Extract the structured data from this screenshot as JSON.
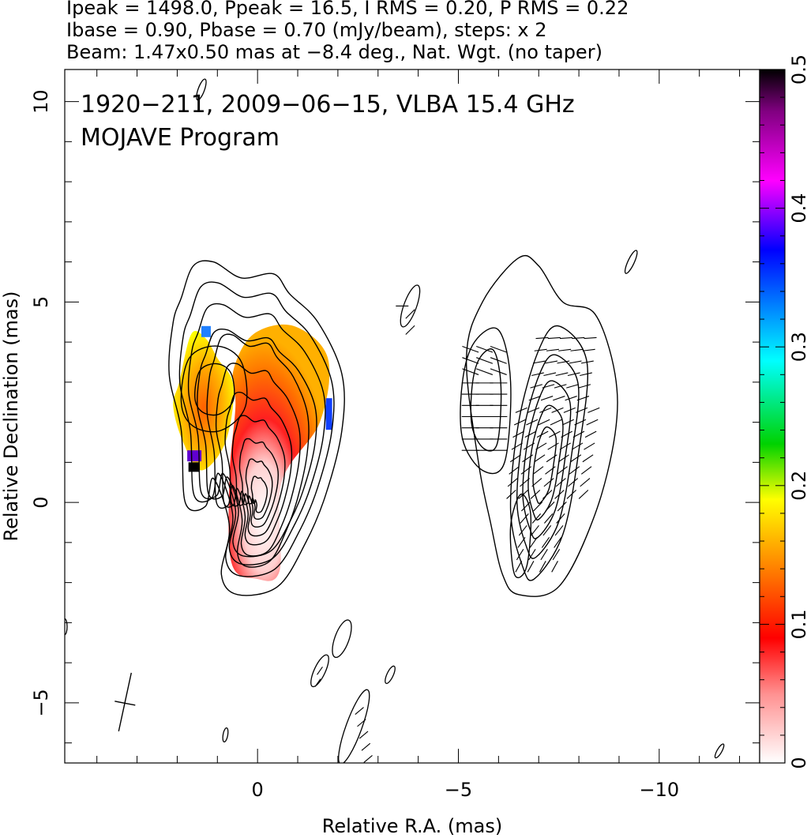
{
  "header": {
    "line1": "Ipeak = 1498.0, Ppeak = 16.5, I RMS = 0.20, P RMS = 0.22",
    "line2": "Ibase = 0.90, Pbase = 0.70 (mJy/beam), steps: x 2",
    "line3": "Beam: 1.47x0.50 mas at −8.4 deg., Nat. Wgt. (no taper)"
  },
  "chart_data": [
    {
      "type": "heatmap",
      "title": "1920−211, 2009−06−15, VLBA 15.4 GHz",
      "subtitle": "MOJAVE Program",
      "xlabel": "Relative R.A. (mas)",
      "ylabel": "Relative Declination (mas)",
      "xlim": [
        4.8,
        -12.5
      ],
      "ylim": [
        -6.5,
        10.8
      ],
      "x_ticks": [
        "0",
        "−5",
        "−10"
      ],
      "x_tick_values": [
        0,
        -5,
        -10
      ],
      "y_ticks": [
        "−5",
        "0",
        "5",
        "10"
      ],
      "y_tick_values": [
        -5,
        0,
        5,
        10
      ],
      "left_panel": {
        "description_quantity": "fractional polarization (color) over Stokes I contours",
        "contour_levels_mJy_per_beam": [
          0.9,
          1.8,
          3.6,
          7.2,
          14.4,
          28.8,
          57.6,
          115.2,
          230.4,
          460.8,
          921.6
        ],
        "core_position": [
          0,
          0
        ],
        "peak_flux_mJy_per_beam": 1498.0
      },
      "right_panel": {
        "description_quantity": "polarized intensity contours with EVPA ticks",
        "offset_ra_mas": -7.0,
        "contour_levels_mJy_per_beam": [
          0.7,
          1.4,
          2.8,
          5.6,
          11.2
        ]
      },
      "beam": {
        "major_mas": 1.47,
        "minor_mas": 0.5,
        "pa_deg": -8.4
      }
    },
    {
      "type": "heatmap",
      "title": "",
      "colorbar": true,
      "range": [
        0,
        0.5
      ],
      "tick_labels": [
        "0",
        "0.1",
        "0.2",
        "0.3",
        "0.4",
        "0.5"
      ],
      "tick_values": [
        0,
        0.1,
        0.2,
        0.3,
        0.4,
        0.5
      ],
      "colormap_stops": [
        {
          "v": 0.0,
          "c": "#ffffff"
        },
        {
          "v": 0.05,
          "c": "#ff9090"
        },
        {
          "v": 0.09,
          "c": "#ff0000"
        },
        {
          "v": 0.14,
          "c": "#ff8000"
        },
        {
          "v": 0.19,
          "c": "#ffff00"
        },
        {
          "v": 0.23,
          "c": "#00d200"
        },
        {
          "v": 0.29,
          "c": "#00ffff"
        },
        {
          "v": 0.37,
          "c": "#0000ff"
        },
        {
          "v": 0.42,
          "c": "#ff00ff"
        },
        {
          "v": 0.47,
          "c": "#800080"
        },
        {
          "v": 0.5,
          "c": "#000000"
        }
      ]
    }
  ]
}
